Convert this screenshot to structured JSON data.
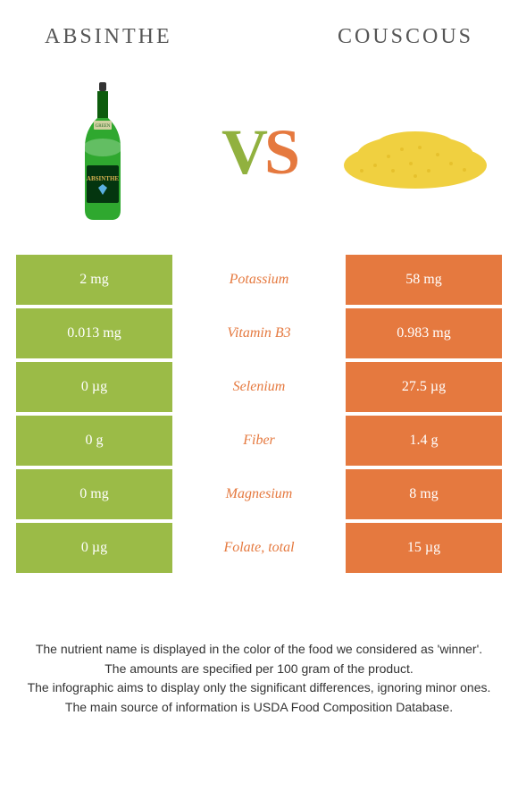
{
  "colors": {
    "left": "#9bbb47",
    "right": "#e5793f",
    "nutrient_winner": "#e5793f",
    "bottle_green": "#2fa82f",
    "bottle_dark": "#0d5c0d",
    "couscous": "#f0d040"
  },
  "header": {
    "left_title": "Absinthe",
    "right_title": "Couscous"
  },
  "vs": {
    "v": "V",
    "s": "S"
  },
  "rows": [
    {
      "left": "2 mg",
      "nutrient": "Potassium",
      "right": "58 mg"
    },
    {
      "left": "0.013 mg",
      "nutrient": "Vitamin B3",
      "right": "0.983 mg"
    },
    {
      "left": "0 µg",
      "nutrient": "Selenium",
      "right": "27.5 µg"
    },
    {
      "left": "0 g",
      "nutrient": "Fiber",
      "right": "1.4 g"
    },
    {
      "left": "0 mg",
      "nutrient": "Magnesium",
      "right": "8 mg"
    },
    {
      "left": "0 µg",
      "nutrient": "Folate, total",
      "right": "15 µg"
    }
  ],
  "footer": [
    "The nutrient name is displayed in the color of the food we considered as 'winner'.",
    "The amounts are specified per 100 gram of the product.",
    "The infographic aims to display only the significant differences, ignoring minor ones.",
    "The main source of information is USDA Food Composition Database."
  ]
}
